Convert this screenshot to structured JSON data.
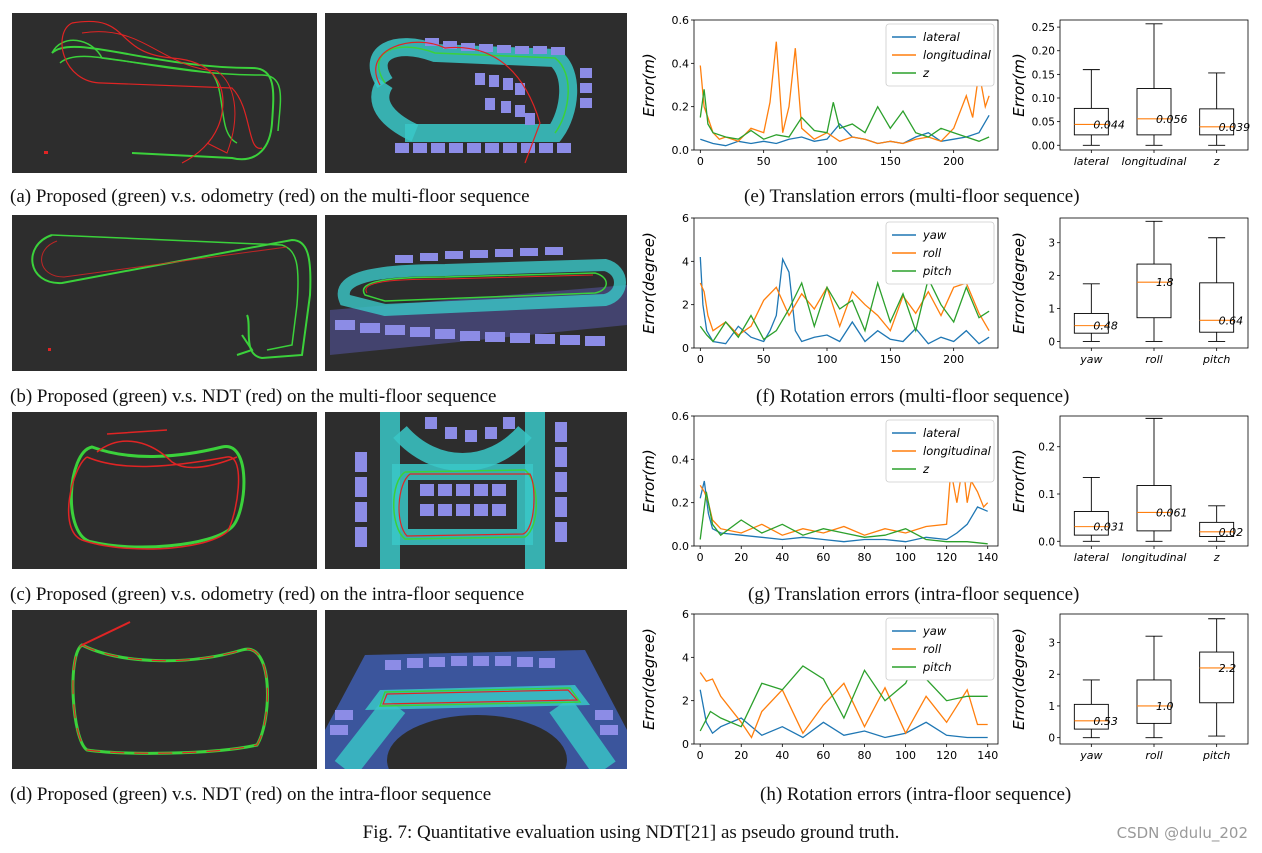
{
  "figure": {
    "caption": "Fig. 7: Quantitative evaluation using NDT[21] as pseudo ground truth.",
    "watermark": "CSDN @dulu_202"
  },
  "rows": [
    {
      "caption_left": "(a) Proposed (green) v.s. odometry (red) on the multi-floor sequence",
      "caption_right": "(e) Translation errors (multi-floor sequence)"
    },
    {
      "caption_left": "(b) Proposed (green) v.s. NDT (red) on the multi-floor sequence",
      "caption_right": "(f) Rotation errors (multi-floor sequence)"
    },
    {
      "caption_left": "(c) Proposed (green) v.s. odometry (red) on the intra-floor sequence",
      "caption_right": "(g) Translation errors (intra-floor sequence)"
    },
    {
      "caption_left": "(d) Proposed (green) v.s. NDT (red) on the intra-floor sequence",
      "caption_right": "(h) Rotation errors (intra-floor sequence)"
    }
  ],
  "colors": {
    "blue": "#1f77b4",
    "orange": "#ff7f0e",
    "green": "#2ca02c",
    "panel_bg": "#2d2d2d",
    "traj_green": "#3bd13b",
    "traj_red": "#e02424"
  },
  "chart_data": [
    {
      "type": "line",
      "row": 0,
      "ylabel": "Error(m)",
      "ylim": [
        0,
        0.6
      ],
      "yticks": [
        "0.0",
        "0.2",
        "0.4",
        "0.6"
      ],
      "ytick_values": [
        0,
        0.2,
        0.4,
        0.6
      ],
      "xlim": [
        -5,
        235
      ],
      "xticks": [
        "0",
        "50",
        "100",
        "150",
        "200"
      ],
      "xtick_values": [
        0,
        50,
        100,
        150,
        200
      ],
      "series": [
        {
          "name": "lateral",
          "color": "#1f77b4",
          "x": [
            0,
            10,
            20,
            30,
            40,
            50,
            60,
            70,
            80,
            90,
            100,
            110,
            120,
            130,
            140,
            150,
            160,
            170,
            180,
            190,
            200,
            210,
            220,
            228
          ],
          "values": [
            0.05,
            0.03,
            0.02,
            0.04,
            0.03,
            0.04,
            0.03,
            0.05,
            0.06,
            0.04,
            0.05,
            0.12,
            0.06,
            0.05,
            0.03,
            0.04,
            0.03,
            0.06,
            0.08,
            0.04,
            0.05,
            0.06,
            0.08,
            0.16
          ]
        },
        {
          "name": "longitudinal",
          "color": "#ff7f0e",
          "x": [
            0,
            3,
            6,
            10,
            15,
            20,
            30,
            40,
            50,
            55,
            60,
            65,
            70,
            75,
            80,
            90,
            100,
            110,
            120,
            130,
            140,
            150,
            160,
            170,
            180,
            190,
            200,
            210,
            215,
            220,
            225,
            228
          ],
          "values": [
            0.39,
            0.2,
            0.15,
            0.08,
            0.05,
            0.06,
            0.04,
            0.1,
            0.08,
            0.22,
            0.5,
            0.08,
            0.2,
            0.47,
            0.1,
            0.05,
            0.08,
            0.04,
            0.06,
            0.05,
            0.03,
            0.04,
            0.03,
            0.05,
            0.06,
            0.04,
            0.1,
            0.25,
            0.15,
            0.36,
            0.2,
            0.25
          ]
        },
        {
          "name": "z",
          "color": "#2ca02c",
          "x": [
            0,
            3,
            6,
            10,
            20,
            30,
            40,
            50,
            60,
            70,
            80,
            90,
            100,
            105,
            110,
            120,
            130,
            140,
            150,
            160,
            170,
            180,
            190,
            200,
            210,
            220,
            228
          ],
          "values": [
            0.15,
            0.28,
            0.12,
            0.08,
            0.06,
            0.05,
            0.09,
            0.05,
            0.07,
            0.06,
            0.15,
            0.09,
            0.08,
            0.22,
            0.1,
            0.12,
            0.08,
            0.2,
            0.1,
            0.18,
            0.08,
            0.06,
            0.1,
            0.08,
            0.06,
            0.04,
            0.06
          ]
        }
      ],
      "legend": [
        "lateral",
        "longitudinal",
        "z"
      ],
      "legend_position": "top-right"
    },
    {
      "type": "box",
      "row": 0,
      "ylabel": "Error(m)",
      "ylim": [
        -0.01,
        0.265
      ],
      "yticks": [
        "0.00",
        "0.05",
        "0.10",
        "0.15",
        "0.20",
        "0.25"
      ],
      "ytick_values": [
        0,
        0.05,
        0.1,
        0.15,
        0.2,
        0.25
      ],
      "categories": [
        "lateral",
        "longitudinal",
        "z"
      ],
      "boxes": [
        {
          "q1": 0.022,
          "median": 0.044,
          "q3": 0.078,
          "whisker_low": 0.0,
          "whisker_high": 0.16
        },
        {
          "q1": 0.022,
          "median": 0.056,
          "q3": 0.12,
          "whisker_low": 0.0,
          "whisker_high": 0.257
        },
        {
          "q1": 0.022,
          "median": 0.039,
          "q3": 0.077,
          "whisker_low": 0.0,
          "whisker_high": 0.153
        }
      ],
      "median_labels": [
        "0.044",
        "0.056",
        "0.039"
      ]
    },
    {
      "type": "line",
      "row": 1,
      "ylabel": "Error(degree)",
      "ylim": [
        0,
        6
      ],
      "yticks": [
        "0",
        "2",
        "4",
        "6"
      ],
      "ytick_values": [
        0,
        2,
        4,
        6
      ],
      "xlim": [
        -5,
        235
      ],
      "xticks": [
        "0",
        "50",
        "100",
        "150",
        "200"
      ],
      "xtick_values": [
        0,
        50,
        100,
        150,
        200
      ],
      "series": [
        {
          "name": "yaw",
          "color": "#1f77b4",
          "x": [
            0,
            2,
            5,
            10,
            20,
            30,
            40,
            50,
            55,
            60,
            65,
            70,
            75,
            80,
            90,
            100,
            110,
            120,
            130,
            140,
            150,
            160,
            170,
            180,
            190,
            200,
            210,
            220,
            228
          ],
          "values": [
            4.2,
            2.0,
            0.8,
            0.3,
            0.2,
            1.0,
            0.5,
            0.3,
            0.8,
            1.5,
            4.1,
            3.5,
            0.8,
            0.3,
            0.5,
            0.6,
            0.3,
            1.2,
            0.3,
            0.8,
            0.4,
            0.3,
            0.9,
            0.2,
            0.5,
            0.3,
            0.8,
            0.2,
            0.5
          ]
        },
        {
          "name": "roll",
          "color": "#ff7f0e",
          "x": [
            0,
            3,
            6,
            10,
            20,
            30,
            40,
            50,
            60,
            70,
            80,
            90,
            100,
            110,
            120,
            130,
            140,
            150,
            160,
            170,
            180,
            190,
            200,
            210,
            220,
            228
          ],
          "values": [
            3.0,
            2.6,
            1.5,
            0.8,
            1.2,
            0.6,
            1.0,
            2.2,
            2.8,
            1.5,
            2.5,
            1.8,
            2.8,
            1.0,
            2.6,
            2.0,
            1.5,
            0.8,
            2.4,
            1.6,
            2.6,
            1.5,
            2.8,
            3.0,
            1.6,
            0.8
          ]
        },
        {
          "name": "pitch",
          "color": "#2ca02c",
          "x": [
            0,
            5,
            10,
            20,
            30,
            40,
            50,
            60,
            70,
            80,
            90,
            100,
            110,
            120,
            130,
            140,
            150,
            160,
            170,
            180,
            190,
            200,
            210,
            220,
            228
          ],
          "values": [
            1.0,
            0.6,
            0.3,
            1.2,
            0.5,
            1.5,
            0.4,
            0.8,
            1.8,
            3.0,
            1.0,
            2.8,
            1.8,
            2.2,
            0.8,
            3.0,
            1.2,
            2.5,
            0.8,
            3.2,
            2.0,
            1.2,
            2.8,
            1.4,
            1.7
          ]
        }
      ],
      "legend": [
        "yaw",
        "roll",
        "pitch"
      ],
      "legend_position": "top-right"
    },
    {
      "type": "box",
      "row": 1,
      "ylabel": "Error(degree)",
      "ylim": [
        -0.2,
        3.75
      ],
      "yticks": [
        "0",
        "1",
        "2",
        "3"
      ],
      "ytick_values": [
        0,
        1,
        2,
        3
      ],
      "categories": [
        "yaw",
        "roll",
        "pitch"
      ],
      "boxes": [
        {
          "q1": 0.25,
          "median": 0.48,
          "q3": 0.85,
          "whisker_low": 0.0,
          "whisker_high": 1.75
        },
        {
          "q1": 0.72,
          "median": 1.8,
          "q3": 2.35,
          "whisker_low": 0.0,
          "whisker_high": 3.65
        },
        {
          "q1": 0.28,
          "median": 0.64,
          "q3": 1.78,
          "whisker_low": 0.0,
          "whisker_high": 3.15
        }
      ],
      "median_labels": [
        "0.48",
        "1.8",
        "0.64"
      ]
    },
    {
      "type": "line",
      "row": 2,
      "ylabel": "Error(m)",
      "ylim": [
        0,
        0.6
      ],
      "yticks": [
        "0.0",
        "0.2",
        "0.4",
        "0.6"
      ],
      "ytick_values": [
        0,
        0.2,
        0.4,
        0.6
      ],
      "xlim": [
        -3,
        145
      ],
      "xticks": [
        "0",
        "20",
        "40",
        "60",
        "80",
        "100",
        "120",
        "140"
      ],
      "xtick_values": [
        0,
        20,
        40,
        60,
        80,
        100,
        120,
        140
      ],
      "series": [
        {
          "name": "lateral",
          "color": "#1f77b4",
          "x": [
            0,
            2,
            4,
            6,
            10,
            20,
            30,
            40,
            50,
            60,
            70,
            80,
            90,
            100,
            110,
            120,
            125,
            130,
            135,
            140
          ],
          "values": [
            0.22,
            0.3,
            0.15,
            0.08,
            0.06,
            0.05,
            0.04,
            0.03,
            0.04,
            0.03,
            0.02,
            0.03,
            0.03,
            0.02,
            0.04,
            0.03,
            0.06,
            0.1,
            0.18,
            0.16
          ]
        },
        {
          "name": "longitudinal",
          "color": "#ff7f0e",
          "x": [
            0,
            2,
            4,
            6,
            10,
            20,
            30,
            40,
            50,
            60,
            70,
            80,
            90,
            100,
            110,
            120,
            122,
            125,
            128,
            130,
            132,
            135,
            138,
            140
          ],
          "values": [
            0.28,
            0.25,
            0.2,
            0.12,
            0.08,
            0.06,
            0.1,
            0.05,
            0.08,
            0.06,
            0.09,
            0.05,
            0.08,
            0.06,
            0.09,
            0.1,
            0.35,
            0.2,
            0.38,
            0.2,
            0.3,
            0.25,
            0.18,
            0.2
          ]
        },
        {
          "name": "z",
          "color": "#2ca02c",
          "x": [
            0,
            3,
            6,
            10,
            20,
            30,
            40,
            50,
            60,
            70,
            80,
            90,
            100,
            110,
            120,
            130,
            140
          ],
          "values": [
            0.03,
            0.25,
            0.1,
            0.05,
            0.12,
            0.06,
            0.1,
            0.05,
            0.08,
            0.06,
            0.04,
            0.05,
            0.08,
            0.03,
            0.02,
            0.02,
            0.01
          ]
        }
      ],
      "legend": [
        "lateral",
        "longitudinal",
        "z"
      ],
      "legend_position": "top-right"
    },
    {
      "type": "box",
      "row": 2,
      "ylabel": "Error(m)",
      "ylim": [
        -0.01,
        0.265
      ],
      "yticks": [
        "0.0",
        "0.1",
        "0.2"
      ],
      "ytick_values": [
        0,
        0.1,
        0.2
      ],
      "categories": [
        "lateral",
        "longitudinal",
        "z"
      ],
      "boxes": [
        {
          "q1": 0.013,
          "median": 0.031,
          "q3": 0.063,
          "whisker_low": 0.0,
          "whisker_high": 0.135
        },
        {
          "q1": 0.022,
          "median": 0.061,
          "q3": 0.118,
          "whisker_low": 0.0,
          "whisker_high": 0.26
        },
        {
          "q1": 0.01,
          "median": 0.02,
          "q3": 0.04,
          "whisker_low": 0.0,
          "whisker_high": 0.075
        }
      ],
      "median_labels": [
        "0.031",
        "0.061",
        "0.02"
      ]
    },
    {
      "type": "line",
      "row": 3,
      "ylabel": "Error(degree)",
      "ylim": [
        0,
        6
      ],
      "yticks": [
        "0",
        "2",
        "4",
        "6"
      ],
      "ytick_values": [
        0,
        2,
        4,
        6
      ],
      "xlim": [
        -3,
        145
      ],
      "xticks": [
        "0",
        "20",
        "40",
        "60",
        "80",
        "100",
        "120",
        "140"
      ],
      "xtick_values": [
        0,
        20,
        40,
        60,
        80,
        100,
        120,
        140
      ],
      "series": [
        {
          "name": "yaw",
          "color": "#1f77b4",
          "x": [
            0,
            3,
            6,
            10,
            20,
            30,
            40,
            50,
            60,
            70,
            80,
            90,
            100,
            110,
            120,
            130,
            140
          ],
          "values": [
            2.5,
            1.0,
            0.5,
            0.8,
            1.2,
            0.4,
            0.8,
            0.3,
            1.0,
            0.4,
            0.6,
            0.3,
            0.5,
            1.0,
            0.4,
            0.3,
            0.3
          ]
        },
        {
          "name": "roll",
          "color": "#ff7f0e",
          "x": [
            0,
            3,
            6,
            10,
            20,
            25,
            30,
            40,
            50,
            60,
            70,
            80,
            90,
            100,
            110,
            120,
            130,
            135,
            140
          ],
          "values": [
            3.3,
            2.9,
            3.0,
            2.2,
            1.0,
            0.3,
            1.5,
            2.5,
            0.5,
            1.8,
            2.8,
            0.8,
            2.6,
            0.5,
            2.2,
            1.0,
            2.5,
            0.9,
            0.9
          ]
        },
        {
          "name": "pitch",
          "color": "#2ca02c",
          "x": [
            0,
            5,
            10,
            20,
            30,
            40,
            50,
            60,
            70,
            80,
            90,
            100,
            105,
            110,
            120,
            130,
            140
          ],
          "values": [
            0.6,
            1.5,
            1.2,
            0.8,
            2.8,
            2.5,
            3.6,
            3.0,
            1.2,
            3.4,
            2.0,
            2.8,
            3.8,
            3.0,
            2.0,
            2.2,
            2.2
          ]
        }
      ],
      "legend": [
        "yaw",
        "roll",
        "pitch"
      ],
      "legend_position": "top-right"
    },
    {
      "type": "box",
      "row": 3,
      "ylabel": "Error(degree)",
      "ylim": [
        -0.2,
        3.9
      ],
      "yticks": [
        "0",
        "1",
        "2",
        "3"
      ],
      "ytick_values": [
        0,
        1,
        2,
        3
      ],
      "categories": [
        "yaw",
        "roll",
        "pitch"
      ],
      "boxes": [
        {
          "q1": 0.27,
          "median": 0.53,
          "q3": 1.05,
          "whisker_low": 0.0,
          "whisker_high": 1.82
        },
        {
          "q1": 0.45,
          "median": 1.0,
          "q3": 1.82,
          "whisker_low": 0.0,
          "whisker_high": 3.2
        },
        {
          "q1": 1.1,
          "median": 2.2,
          "q3": 2.7,
          "whisker_low": 0.05,
          "whisker_high": 3.75
        }
      ],
      "median_labels": [
        "0.53",
        "1.0",
        "2.2"
      ]
    }
  ]
}
